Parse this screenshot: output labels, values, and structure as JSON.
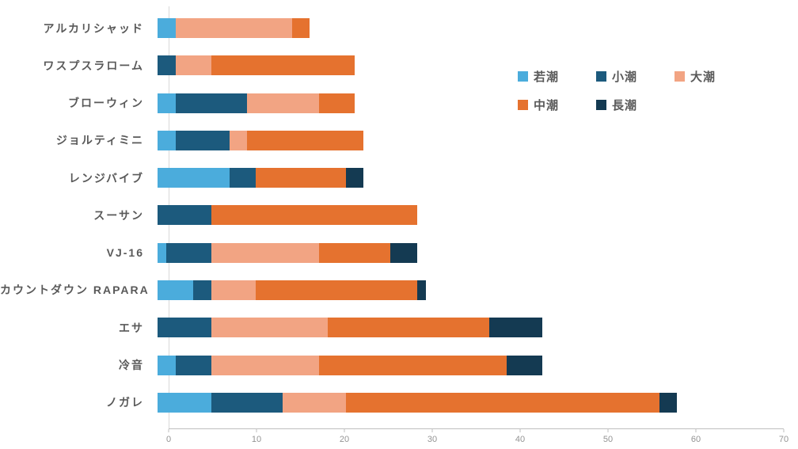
{
  "chart_data": {
    "type": "bar",
    "orientation": "horizontal",
    "stacked": true,
    "title": "",
    "xlabel": "",
    "ylabel": "",
    "grid": false,
    "legend_position": "inside-upper-right",
    "legend_rows": [
      [
        "若潮",
        "小潮",
        "大潮"
      ],
      [
        "中潮",
        "長潮"
      ]
    ],
    "categories": [
      "アルカリシャッド",
      "ワスプスラローム",
      "ブローウィン",
      "ジョルティミニ",
      "レンジバイブ",
      "スーサン",
      "VJ-16",
      "カウントダウン RAPARA",
      "エサ",
      "冷音",
      "ノガレ"
    ],
    "series": [
      {
        "name": "若潮",
        "color": "#4BACDC",
        "values": [
          2,
          0,
          2,
          2,
          8,
          0,
          1,
          4,
          0,
          2,
          6
        ]
      },
      {
        "name": "小潮",
        "color": "#1C5A7D",
        "values": [
          0,
          2,
          8,
          6,
          3,
          6,
          5,
          2,
          6,
          4,
          8
        ]
      },
      {
        "name": "大潮",
        "color": "#F2A483",
        "values": [
          13,
          4,
          8,
          2,
          0,
          0,
          12,
          5,
          13,
          12,
          7
        ]
      },
      {
        "name": "中潮",
        "color": "#E5722F",
        "values": [
          2,
          16,
          4,
          13,
          10,
          23,
          8,
          18,
          18,
          21,
          35
        ]
      },
      {
        "name": "長潮",
        "color": "#143A52",
        "values": [
          0,
          0,
          0,
          0,
          2,
          0,
          3,
          1,
          6,
          4,
          2
        ]
      }
    ],
    "totals": [
      17,
      22,
      22,
      23,
      23,
      29,
      29,
      30,
      43,
      43,
      58
    ],
    "xlim": [
      0,
      70
    ],
    "x_ticks": [
      0,
      10,
      20,
      30,
      40,
      50,
      60,
      70
    ]
  },
  "colors": {
    "background": "#ffffff",
    "axis_line": "#bfbfbf",
    "y_axis_line": "#d9d9d9",
    "category_text": "#595959",
    "tick_text": "#949494",
    "legend_text": "#595959"
  }
}
